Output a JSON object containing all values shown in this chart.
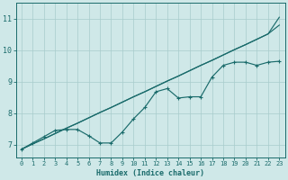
{
  "xlabel": "Humidex (Indice chaleur)",
  "background_color": "#cfe8e8",
  "grid_color": "#a8cccc",
  "line_color": "#1a6b6b",
  "xlim": [
    -0.5,
    23.5
  ],
  "ylim": [
    6.6,
    11.5
  ],
  "xticks": [
    0,
    1,
    2,
    3,
    4,
    5,
    6,
    7,
    8,
    9,
    10,
    11,
    12,
    13,
    14,
    15,
    16,
    17,
    18,
    19,
    20,
    21,
    22,
    23
  ],
  "yticks": [
    7,
    8,
    9,
    10,
    11
  ],
  "line1_x": [
    0,
    1,
    2,
    3,
    4,
    5,
    6,
    7,
    8,
    9,
    10,
    11,
    12,
    13,
    14,
    15,
    16,
    17,
    18,
    19,
    20,
    21,
    22,
    23
  ],
  "line1_y": [
    6.85,
    7.02,
    7.18,
    7.35,
    7.52,
    7.68,
    7.85,
    8.02,
    8.18,
    8.35,
    8.52,
    8.68,
    8.85,
    9.02,
    9.18,
    9.35,
    9.52,
    9.68,
    9.85,
    10.02,
    10.18,
    10.35,
    10.52,
    11.05
  ],
  "line2_x": [
    0,
    1,
    2,
    3,
    4,
    5,
    6,
    7,
    8,
    9,
    10,
    11,
    12,
    13,
    14,
    15,
    16,
    17,
    18,
    19,
    20,
    21,
    22,
    23
  ],
  "line2_y": [
    6.85,
    7.02,
    7.18,
    7.35,
    7.52,
    7.68,
    7.85,
    8.02,
    8.18,
    8.35,
    8.52,
    8.68,
    8.85,
    9.02,
    9.18,
    9.35,
    9.52,
    9.68,
    9.85,
    10.02,
    10.18,
    10.35,
    10.52,
    10.8
  ],
  "line3_x": [
    0,
    1,
    2,
    3,
    4,
    5,
    6,
    7,
    8,
    9,
    10,
    11,
    12,
    13,
    14,
    15,
    16,
    17,
    18,
    19,
    20,
    21,
    22,
    23
  ],
  "line3_y": [
    6.85,
    7.05,
    7.25,
    7.45,
    7.48,
    7.48,
    7.28,
    7.05,
    7.05,
    7.4,
    7.82,
    8.18,
    8.68,
    8.78,
    8.48,
    8.52,
    8.52,
    9.15,
    9.52,
    9.62,
    9.62,
    9.52,
    9.62,
    9.65
  ]
}
